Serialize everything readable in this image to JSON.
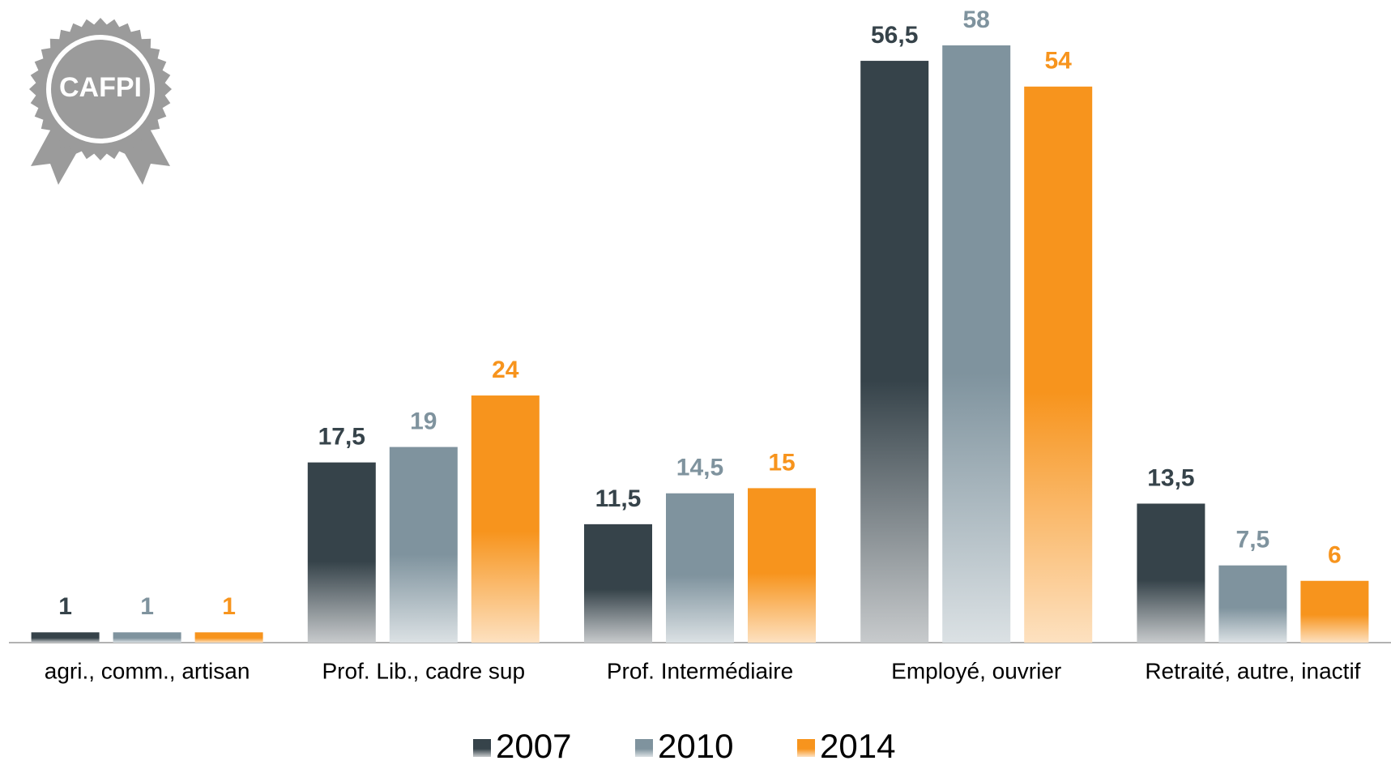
{
  "logo": "CAFPI",
  "chart_data": {
    "type": "bar",
    "categories": [
      "agri., comm., artisan",
      "Prof. Lib., cadre sup",
      "Prof. Intermédiaire",
      "Employé, ouvrier",
      "Retraité, autre, inactif"
    ],
    "series": [
      {
        "name": "2007",
        "color": "#36434a",
        "values": [
          1,
          17.5,
          11.5,
          56.5,
          13.5
        ],
        "value_labels": [
          "1",
          "17,5",
          "11,5",
          "56,5",
          "13,5"
        ]
      },
      {
        "name": "2010",
        "color": "#7f939e",
        "values": [
          1,
          19,
          14.5,
          58,
          7.5
        ],
        "value_labels": [
          "1",
          "19",
          "14,5",
          "58",
          "7,5"
        ]
      },
      {
        "name": "2014",
        "color": "#f7941d",
        "values": [
          1,
          24,
          15,
          54,
          6
        ],
        "value_labels": [
          "1",
          "24",
          "15",
          "54",
          "6"
        ]
      }
    ],
    "legend": "bottom"
  }
}
